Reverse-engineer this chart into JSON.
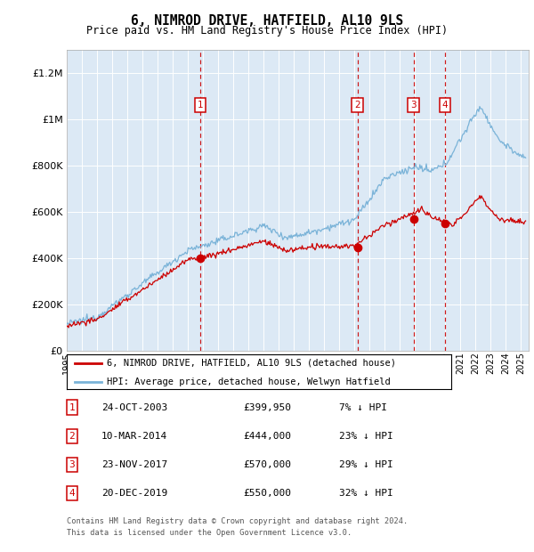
{
  "title": "6, NIMROD DRIVE, HATFIELD, AL10 9LS",
  "subtitle": "Price paid vs. HM Land Registry's House Price Index (HPI)",
  "ylim": [
    0,
    1300000
  ],
  "xlim_start": 1995.0,
  "xlim_end": 2025.5,
  "legend_line1": "6, NIMROD DRIVE, HATFIELD, AL10 9LS (detached house)",
  "legend_line2": "HPI: Average price, detached house, Welwyn Hatfield",
  "transactions": [
    {
      "num": 1,
      "date": "24-OCT-2003",
      "price": 399950,
      "pct": "7% ↓ HPI",
      "x": 2003.81
    },
    {
      "num": 2,
      "date": "10-MAR-2014",
      "price": 444000,
      "pct": "23% ↓ HPI",
      "x": 2014.19
    },
    {
      "num": 3,
      "date": "23-NOV-2017",
      "price": 570000,
      "pct": "29% ↓ HPI",
      "x": 2017.89
    },
    {
      "num": 4,
      "date": "20-DEC-2019",
      "price": 550000,
      "pct": "32% ↓ HPI",
      "x": 2019.97
    }
  ],
  "footer_line1": "Contains HM Land Registry data © Crown copyright and database right 2024.",
  "footer_line2": "This data is licensed under the Open Government Licence v3.0.",
  "hpi_color": "#7ab3d8",
  "price_color": "#cc0000",
  "bg_color": "#dce9f5",
  "marker_box_color": "#cc0000",
  "dashed_line_color": "#cc0000"
}
